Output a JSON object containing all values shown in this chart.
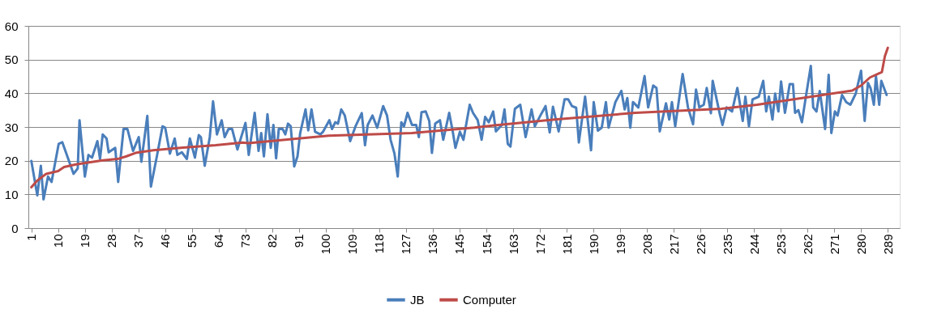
{
  "chart_data": {
    "type": "line",
    "xlim": [
      0,
      293
    ],
    "ylim": [
      0,
      60
    ],
    "yticks": [
      0,
      10,
      20,
      30,
      40,
      50,
      60
    ],
    "xticks": [
      1,
      10,
      19,
      28,
      37,
      46,
      55,
      64,
      73,
      82,
      91,
      100,
      109,
      118,
      127,
      136,
      145,
      154,
      163,
      172,
      181,
      190,
      199,
      208,
      217,
      226,
      235,
      244,
      253,
      262,
      271,
      280,
      289
    ],
    "grid": "y",
    "legend": "bottom",
    "line_style": "solid",
    "series": [
      {
        "name": "JB",
        "color": "#4a7ebb",
        "x": [
          1,
          3,
          4.2,
          5.1,
          6.6,
          7.8,
          10.2,
          11.4,
          15.2,
          16.6,
          17.2,
          19,
          20.2,
          21.4,
          23.2,
          24.1,
          25,
          26.3,
          27,
          29.2,
          30.2,
          32,
          33.3,
          35.2,
          37.1,
          38,
          40,
          41.2,
          43.3,
          45.1,
          46,
          47.6,
          49.2,
          50.1,
          51.6,
          53.3,
          54.3,
          56,
          57.3,
          58,
          59.3,
          61,
          62.1,
          63.4,
          65,
          66,
          67.3,
          68.5,
          70.3,
          73,
          74.1,
          76.1,
          77.4,
          78.3,
          79.2,
          80.4,
          81.5,
          82.4,
          83.3,
          84.2,
          85.5,
          86.4,
          87.3,
          88.2,
          89.4,
          90.5,
          91.4,
          93.2,
          94.1,
          95.2,
          96.4,
          98.2,
          99.1,
          101.2,
          102.1,
          103.2,
          104.1,
          105.2,
          106.4,
          108.2,
          110,
          112.1,
          113.2,
          114.1,
          115.7,
          117.3,
          119.3,
          120.6,
          121.8,
          123.1,
          124.2,
          125.4,
          126.3,
          127.5,
          129,
          130.4,
          131.3,
          132.2,
          133.6,
          134.8,
          135.7,
          136.8,
          138.4,
          139.5,
          141.5,
          142.7,
          143.6,
          145.1,
          146.3,
          148.4,
          149.5,
          151.1,
          152.4,
          153.6,
          154.8,
          156.3,
          157.2,
          159.2,
          160.1,
          161.2,
          162.1,
          163.6,
          165.4,
          167.2,
          169.2,
          170.3,
          172.4,
          173.9,
          175.3,
          176.4,
          178.3,
          180.3,
          181.5,
          182.8,
          184.2,
          185.1,
          187.2,
          189.2,
          190.1,
          191.5,
          192.8,
          194.2,
          195.1,
          197.4,
          199.4,
          200.5,
          201.4,
          202.4,
          203.3,
          205.1,
          207.2,
          208.4,
          210.1,
          211.2,
          212.3,
          214.4,
          215.5,
          216.4,
          217.5,
          220,
          221.8,
          223.5,
          224.5,
          225.6,
          227.1,
          228.1,
          229.5,
          230.1,
          232.5,
          233.4,
          234.8,
          236.6,
          238.4,
          240.2,
          241.1,
          242.3,
          243.5,
          245.6,
          247.1,
          248.1,
          249,
          250.2,
          251.1,
          252.2,
          253.1,
          254.4,
          256,
          257.1,
          257.8,
          258.9,
          260.1,
          261.3,
          263.1,
          263.9,
          265,
          266.1,
          267.9,
          269.1,
          270,
          271.2,
          272.1,
          273.6,
          275,
          276.4,
          278.2,
          280,
          281.2,
          282.3,
          283.2,
          284.3,
          285,
          286.1,
          286.8,
          288.6
        ],
        "values": [
          19.9,
          9.7,
          18.5,
          8.5,
          15.3,
          13.7,
          25,
          25.5,
          16.1,
          17.7,
          32,
          15.3,
          21.7,
          20.9,
          25.8,
          20.5,
          27.8,
          26.6,
          22.5,
          23.8,
          13.7,
          29.4,
          29.4,
          22.9,
          27,
          19.7,
          33.3,
          12.3,
          21.7,
          30.2,
          29.8,
          22.1,
          26.6,
          21.7,
          22.5,
          20.5,
          26.6,
          20.9,
          27.6,
          27,
          18.5,
          27,
          37.6,
          27.8,
          32,
          27,
          29.4,
          29.4,
          23.3,
          31.2,
          21.7,
          34.2,
          22.9,
          28.2,
          21.3,
          33.8,
          23.8,
          30.6,
          20.7,
          29.4,
          29.4,
          27.8,
          31,
          30.2,
          18.3,
          21.3,
          28.2,
          35.2,
          29,
          35.2,
          28.6,
          27.8,
          28.6,
          32,
          29.4,
          31.4,
          31,
          35.2,
          33.4,
          25.8,
          30.2,
          34.1,
          24.6,
          30.6,
          33.4,
          29.8,
          36.2,
          33.4,
          26.2,
          22.1,
          15.3,
          31.4,
          30.2,
          34.2,
          30.6,
          30.6,
          27,
          34.4,
          34.6,
          31.8,
          22.3,
          31,
          32,
          26.2,
          34.2,
          28.6,
          23.8,
          28.6,
          26.2,
          36.6,
          34.2,
          32,
          26.2,
          33,
          31.4,
          34.6,
          28.7,
          30.6,
          35.2,
          25,
          24.2,
          35.4,
          36.6,
          27,
          35.2,
          30.2,
          33.8,
          36.2,
          28.4,
          36,
          28.7,
          38.2,
          38.2,
          36.2,
          35.7,
          25.4,
          39,
          23.1,
          37.4,
          28.9,
          29.8,
          37.4,
          29.8,
          37.4,
          40.7,
          35.2,
          38.6,
          29.8,
          37.4,
          35.8,
          45.1,
          35.8,
          42.3,
          41.6,
          28.7,
          37,
          32.2,
          37.4,
          30.2,
          45.7,
          35.8,
          30.8,
          41.1,
          35.8,
          36.6,
          41.6,
          34.1,
          43.7,
          33.8,
          30.6,
          35.8,
          34.6,
          41.6,
          31.8,
          39,
          30.2,
          38.2,
          39,
          43.7,
          34.6,
          39,
          32.2,
          39.9,
          34.6,
          43.5,
          34.2,
          42.7,
          42.7,
          34.2,
          35,
          31.4,
          38.2,
          48.1,
          35.8,
          34.6,
          40.7,
          29.4,
          45.5,
          28.2,
          34.6,
          33.4,
          39.5,
          37.4,
          36.6,
          39.9,
          46.7,
          31.8,
          43.1,
          41.5,
          36.6,
          45.1,
          36.6,
          43.7,
          39.5
        ]
      },
      {
        "name": "Computer",
        "color": "#be4b48",
        "x": [
          1,
          3,
          6,
          10,
          12,
          16,
          25,
          30,
          33,
          36,
          42,
          52,
          63,
          72,
          74,
          101,
          129,
          150,
          156,
          177,
          204,
          233,
          245,
          277,
          280,
          283,
          287,
          288,
          289
        ],
        "values": [
          12.1,
          14.1,
          16.1,
          16.9,
          18.1,
          18.9,
          20.1,
          20.5,
          21.3,
          22.3,
          23.1,
          23.9,
          24.6,
          25.4,
          25.2,
          27.4,
          28.2,
          29.8,
          30.4,
          32.2,
          34.2,
          35.4,
          36.6,
          40.8,
          42.3,
          44.7,
          46.3,
          51,
          53.5
        ]
      }
    ]
  }
}
